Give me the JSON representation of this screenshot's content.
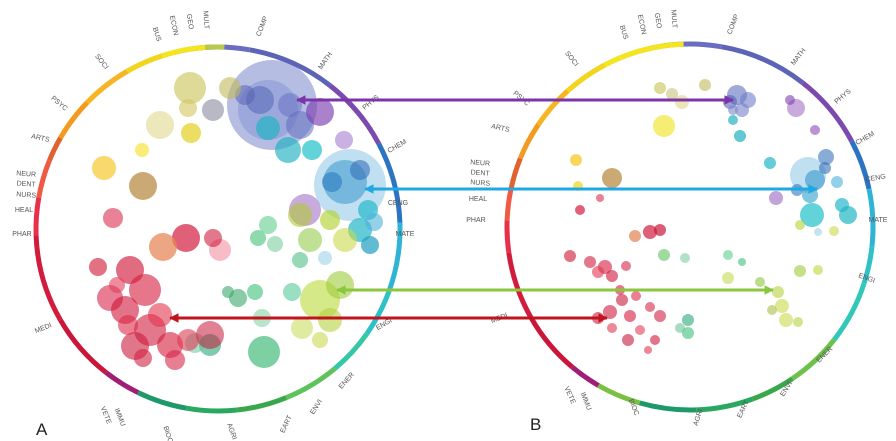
{
  "panels": [
    {
      "letter": "A",
      "labels": [
        "SOCI",
        "BUS",
        "ECON",
        "GEO",
        "MULT",
        "COMP",
        "MATH",
        "PHYS",
        "CHEM",
        "PSYC",
        "ARTS",
        "NEUR",
        "DENT",
        "NURS",
        "HEAL",
        "PHAR",
        "MEDI",
        "VETE",
        "IMMU",
        "BIOC",
        "AGRI",
        "EART",
        "ENVI",
        "ENER",
        "ENGI",
        "CENG",
        "MATE"
      ]
    },
    {
      "letter": "B",
      "labels": [
        "SOCI",
        "BUS",
        "ECON",
        "GEO",
        "MULT",
        "COMP",
        "MATH",
        "PHYS",
        "CHEM",
        "CENG",
        "MATE",
        "ENGI",
        "ENER",
        "ENVI",
        "EART",
        "AGRI",
        "BIOC",
        "VETE",
        "IMMU",
        "PSYC",
        "ARTS",
        "NEUR",
        "DENT",
        "NURS",
        "HEAL",
        "PHAR",
        "MEDI"
      ]
    }
  ],
  "arrows": [
    {
      "color": "#7b35a8"
    },
    {
      "color": "#1ea8e4"
    },
    {
      "color": "#8cc63f"
    },
    {
      "color": "#c0141e"
    }
  ]
}
